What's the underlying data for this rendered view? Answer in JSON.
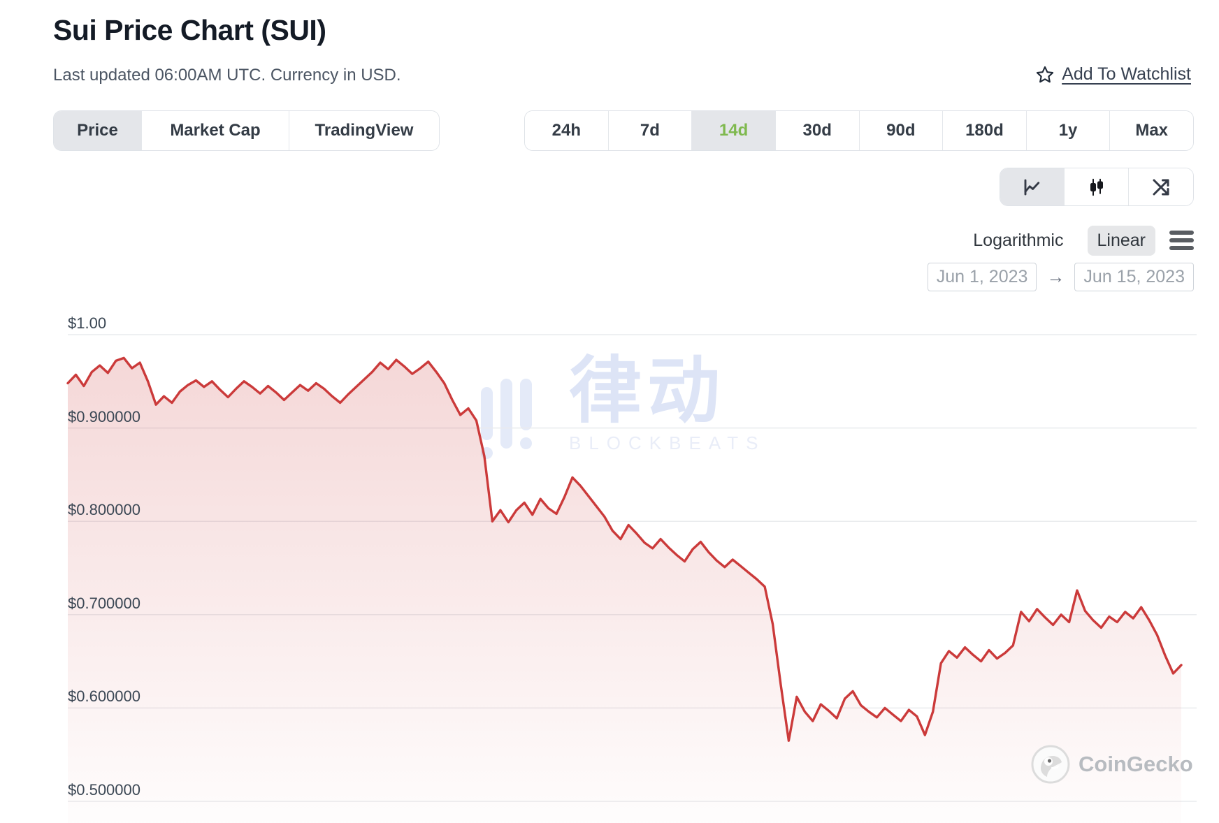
{
  "header": {
    "title": "Sui Price Chart (SUI)",
    "subtitle": "Last updated 06:00AM UTC. Currency in USD.",
    "watchlist_label": "Add To Watchlist"
  },
  "view_tabs": [
    {
      "label": "Price",
      "active": true
    },
    {
      "label": "Market Cap",
      "active": false
    },
    {
      "label": "TradingView",
      "active": false
    }
  ],
  "range_tabs": [
    {
      "label": "24h",
      "active": false
    },
    {
      "label": "7d",
      "active": false
    },
    {
      "label": "14d",
      "active": true
    },
    {
      "label": "30d",
      "active": false
    },
    {
      "label": "90d",
      "active": false
    },
    {
      "label": "180d",
      "active": false
    },
    {
      "label": "1y",
      "active": false
    },
    {
      "label": "Max",
      "active": false
    }
  ],
  "chart_type_buttons": [
    {
      "name": "line-chart",
      "active": true
    },
    {
      "name": "candlestick-chart",
      "active": false
    },
    {
      "name": "fullscreen",
      "active": false
    }
  ],
  "scale_toggle": {
    "options": [
      {
        "label": "Logarithmic",
        "active": false
      },
      {
        "label": "Linear",
        "active": true
      }
    ]
  },
  "date_range": {
    "start": "Jun 1, 2023",
    "end": "Jun 15, 2023"
  },
  "watermark": {
    "cjk": "律动",
    "latin": "BLOCKBEATS"
  },
  "attribution": {
    "brand": "CoinGecko"
  },
  "colors": {
    "line": "#cb3a3a",
    "fill_top": "rgba(203,58,58,0.20)",
    "fill_bottom": "rgba(203,58,58,0.01)",
    "gridline": "#e9ebee",
    "active_range": "#7fb94f"
  },
  "chart_data": {
    "type": "area",
    "title": "Sui Price Chart (SUI)",
    "currency": "USD",
    "x_range": [
      "Jun 1, 2023",
      "Jun 15, 2023"
    ],
    "ylim": [
      0.5,
      1.0
    ],
    "y_ticks": [
      {
        "label": "$1.00",
        "value": 1.0
      },
      {
        "label": "$0.900000",
        "value": 0.9
      },
      {
        "label": "$0.800000",
        "value": 0.8
      },
      {
        "label": "$0.700000",
        "value": 0.7
      },
      {
        "label": "$0.600000",
        "value": 0.6
      },
      {
        "label": "$0.500000",
        "value": 0.5
      }
    ],
    "values": [
      0.948,
      0.957,
      0.945,
      0.96,
      0.967,
      0.959,
      0.972,
      0.975,
      0.964,
      0.97,
      0.95,
      0.925,
      0.934,
      0.927,
      0.939,
      0.946,
      0.951,
      0.944,
      0.95,
      0.941,
      0.933,
      0.942,
      0.95,
      0.944,
      0.937,
      0.945,
      0.938,
      0.93,
      0.938,
      0.946,
      0.94,
      0.948,
      0.942,
      0.934,
      0.927,
      0.936,
      0.944,
      0.952,
      0.96,
      0.97,
      0.963,
      0.973,
      0.966,
      0.958,
      0.964,
      0.971,
      0.96,
      0.948,
      0.93,
      0.914,
      0.921,
      0.908,
      0.87,
      0.8,
      0.812,
      0.799,
      0.812,
      0.82,
      0.807,
      0.824,
      0.814,
      0.808,
      0.826,
      0.847,
      0.838,
      0.827,
      0.816,
      0.805,
      0.79,
      0.781,
      0.796,
      0.787,
      0.777,
      0.771,
      0.781,
      0.772,
      0.764,
      0.757,
      0.77,
      0.778,
      0.767,
      0.758,
      0.751,
      0.759,
      0.752,
      0.745,
      0.738,
      0.73,
      0.69,
      0.625,
      0.565,
      0.612,
      0.596,
      0.586,
      0.604,
      0.597,
      0.589,
      0.61,
      0.618,
      0.603,
      0.596,
      0.59,
      0.6,
      0.593,
      0.586,
      0.598,
      0.591,
      0.571,
      0.596,
      0.648,
      0.661,
      0.654,
      0.665,
      0.657,
      0.65,
      0.662,
      0.653,
      0.659,
      0.667,
      0.703,
      0.693,
      0.706,
      0.697,
      0.689,
      0.7,
      0.692,
      0.726,
      0.704,
      0.694,
      0.686,
      0.698,
      0.692,
      0.703,
      0.696,
      0.708,
      0.694,
      0.678,
      0.656,
      0.637,
      0.646
    ]
  }
}
